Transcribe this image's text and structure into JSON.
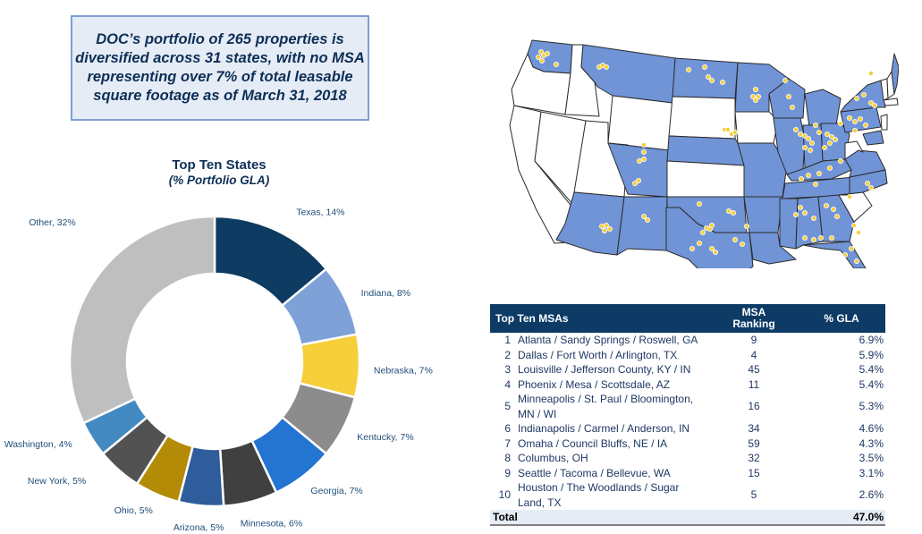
{
  "callout": {
    "lines": [
      "DOC’s portfolio of 265 properties is",
      "diversified across 31 states, with no MSA",
      "representing over 7% of total leasable",
      "square footage as of March 31, 2018"
    ]
  },
  "chart_data": {
    "type": "pie",
    "subtype": "donut",
    "title": "Top Ten States",
    "subtitle": "(% Portfolio GLA)",
    "start": "12 o'clock, clockwise",
    "slices": [
      {
        "label": "Texas",
        "value": 14,
        "text": "Texas, 14%",
        "color": "#0d3b61"
      },
      {
        "label": "Indiana",
        "value": 8,
        "text": "Indiana, 8%",
        "color": "#7ea2d7"
      },
      {
        "label": "Nebraska",
        "value": 7,
        "text": "Nebraska, 7%",
        "color": "#f6cf3b"
      },
      {
        "label": "Kentucky",
        "value": 7,
        "text": "Kentucky, 7%",
        "color": "#8c8c8c"
      },
      {
        "label": "Georgia",
        "value": 7,
        "text": "Georgia, 7%",
        "color": "#2474d2"
      },
      {
        "label": "Minnesota",
        "value": 6,
        "text": "Minnesota, 6%",
        "color": "#404040"
      },
      {
        "label": "Arizona",
        "value": 5,
        "text": "Arizona, 5%",
        "color": "#2f5c9b"
      },
      {
        "label": "Ohio",
        "value": 5,
        "text": "Ohio, 5%",
        "color": "#b38b06"
      },
      {
        "label": "New York",
        "value": 5,
        "text": "New York, 5%",
        "color": "#525252"
      },
      {
        "label": "Washington",
        "value": 4,
        "text": "Washington, 4%",
        "color": "#438ac3"
      },
      {
        "label": "Other",
        "value": 32,
        "text": "Other, 32%",
        "color": "#bfbfbf"
      }
    ]
  },
  "map": {
    "description": "US map with portfolio states shaded and property locations marked",
    "portfolio_state_color": "#7094d6",
    "other_state_color": "#ffffff",
    "property_marker_color": "#f6cf3b"
  },
  "msa_table": {
    "headers": {
      "name": "Top Ten MSAs",
      "rank_line1": "MSA",
      "rank_line2": "Ranking",
      "gla": "% GLA"
    },
    "rows": [
      {
        "num": "1",
        "name": "Atlanta / Sandy Springs / Roswell, GA",
        "rank": "9",
        "gla": "6.9%"
      },
      {
        "num": "2",
        "name": "Dallas / Fort Worth / Arlington, TX",
        "rank": "4",
        "gla": "5.9%"
      },
      {
        "num": "3",
        "name": "Louisville / Jefferson County, KY / IN",
        "rank": "45",
        "gla": "5.4%"
      },
      {
        "num": "4",
        "name": "Phoenix / Mesa / Scottsdale, AZ",
        "rank": "11",
        "gla": "5.4%"
      },
      {
        "num": "5",
        "name": "Minneapolis / St. Paul / Bloomington, MN / WI",
        "rank": "16",
        "gla": "5.3%"
      },
      {
        "num": "6",
        "name": "Indianapolis / Carmel / Anderson, IN",
        "rank": "34",
        "gla": "4.6%"
      },
      {
        "num": "7",
        "name": "Omaha / Council Bluffs, NE / IA",
        "rank": "59",
        "gla": "4.3%"
      },
      {
        "num": "8",
        "name": "Columbus, OH",
        "rank": "32",
        "gla": "3.5%"
      },
      {
        "num": "9",
        "name": "Seattle / Tacoma / Bellevue, WA",
        "rank": "15",
        "gla": "3.1%"
      },
      {
        "num": "10",
        "name": "Houston / The Woodlands / Sugar Land, TX",
        "rank": "5",
        "gla": "2.6%"
      }
    ],
    "total": {
      "label": "Total",
      "gla": "47.0%"
    }
  }
}
